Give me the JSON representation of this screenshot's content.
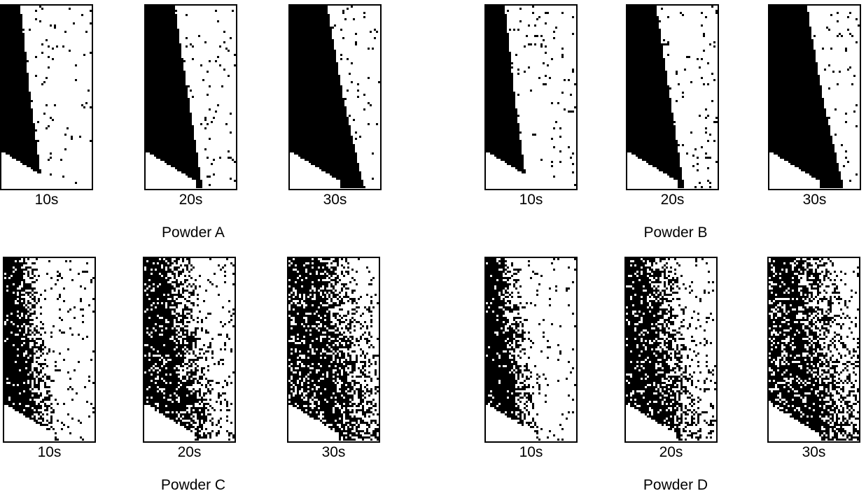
{
  "groups": [
    {
      "label": "Powder A",
      "panels": [
        {
          "time": "10s",
          "kind": "sharp",
          "stage": 0
        },
        {
          "time": "20s",
          "kind": "sharp",
          "stage": 1
        },
        {
          "time": "30s",
          "kind": "sharp",
          "stage": 2
        }
      ]
    },
    {
      "label": "Powder B",
      "panels": [
        {
          "time": "10s",
          "kind": "sharp",
          "stage": 0
        },
        {
          "time": "20s",
          "kind": "sharp",
          "stage": 1
        },
        {
          "time": "30s",
          "kind": "sharp",
          "stage": 2
        }
      ]
    },
    {
      "label": "Powder C",
      "panels": [
        {
          "time": "10s",
          "kind": "mixed",
          "stage": 0
        },
        {
          "time": "20s",
          "kind": "mixed",
          "stage": 1
        },
        {
          "time": "30s",
          "kind": "mixed",
          "stage": 2
        }
      ]
    },
    {
      "label": "Powder D",
      "panels": [
        {
          "time": "10s",
          "kind": "mixed",
          "stage": 0
        },
        {
          "time": "20s",
          "kind": "mixed",
          "stage": 1
        },
        {
          "time": "30s",
          "kind": "mixed",
          "stage": 2
        }
      ]
    }
  ]
}
